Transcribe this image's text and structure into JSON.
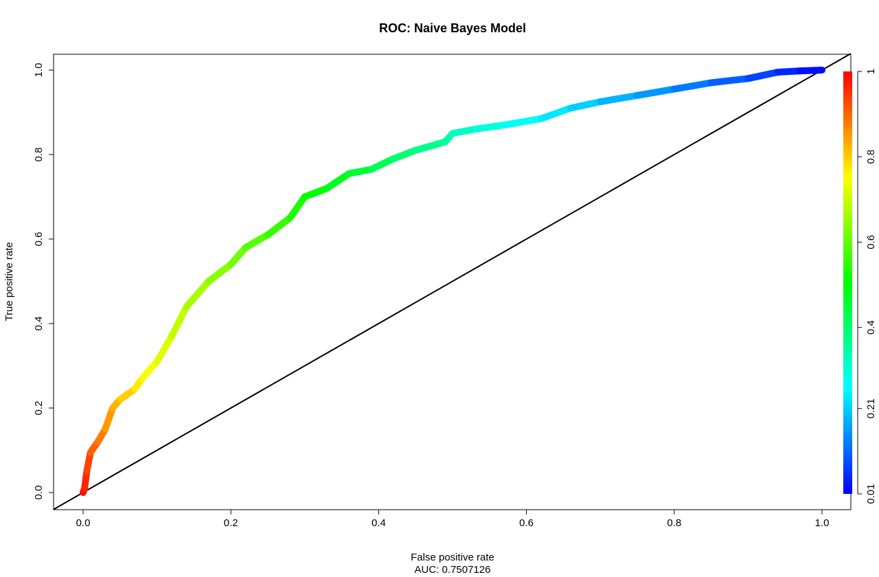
{
  "chart_data": {
    "type": "line",
    "title": "ROC: Naive Bayes Model",
    "xlabel": "False positive rate",
    "xlabel_sub": "AUC: 0.7507126",
    "ylabel": "True positive rate",
    "xlim": [
      0,
      1
    ],
    "ylim": [
      0,
      1
    ],
    "x_ticks": [
      "0.0",
      "0.2",
      "0.4",
      "0.6",
      "0.8",
      "1.0"
    ],
    "y_ticks": [
      "0.0",
      "0.2",
      "0.4",
      "0.6",
      "0.8",
      "1.0"
    ],
    "colorbar_ticks": [
      "0.01",
      "0.21",
      "0.4",
      "0.6",
      "0.8",
      "1"
    ],
    "colorbar_values": [
      0.01,
      0.21,
      0.4,
      0.6,
      0.8,
      1.0
    ],
    "colorbar_colors": [
      "#0000ff",
      "#00ffff",
      "#00ff00",
      "#ffff00",
      "#ff0000"
    ],
    "diagonal_color": "#000000",
    "roc_points": [
      {
        "fpr": 0.0,
        "tpr": 0.0
      },
      {
        "fpr": 0.002,
        "tpr": 0.01
      },
      {
        "fpr": 0.005,
        "tpr": 0.05
      },
      {
        "fpr": 0.01,
        "tpr": 0.095
      },
      {
        "fpr": 0.02,
        "tpr": 0.12
      },
      {
        "fpr": 0.03,
        "tpr": 0.15
      },
      {
        "fpr": 0.04,
        "tpr": 0.2
      },
      {
        "fpr": 0.05,
        "tpr": 0.22
      },
      {
        "fpr": 0.07,
        "tpr": 0.245
      },
      {
        "fpr": 0.08,
        "tpr": 0.27
      },
      {
        "fpr": 0.1,
        "tpr": 0.31
      },
      {
        "fpr": 0.12,
        "tpr": 0.37
      },
      {
        "fpr": 0.14,
        "tpr": 0.44
      },
      {
        "fpr": 0.17,
        "tpr": 0.5
      },
      {
        "fpr": 0.2,
        "tpr": 0.54
      },
      {
        "fpr": 0.22,
        "tpr": 0.58
      },
      {
        "fpr": 0.25,
        "tpr": 0.61
      },
      {
        "fpr": 0.28,
        "tpr": 0.65
      },
      {
        "fpr": 0.3,
        "tpr": 0.7
      },
      {
        "fpr": 0.33,
        "tpr": 0.72
      },
      {
        "fpr": 0.36,
        "tpr": 0.755
      },
      {
        "fpr": 0.39,
        "tpr": 0.765
      },
      {
        "fpr": 0.42,
        "tpr": 0.79
      },
      {
        "fpr": 0.45,
        "tpr": 0.81
      },
      {
        "fpr": 0.49,
        "tpr": 0.83
      },
      {
        "fpr": 0.5,
        "tpr": 0.85
      },
      {
        "fpr": 0.53,
        "tpr": 0.86
      },
      {
        "fpr": 0.57,
        "tpr": 0.87
      },
      {
        "fpr": 0.62,
        "tpr": 0.885
      },
      {
        "fpr": 0.66,
        "tpr": 0.91
      },
      {
        "fpr": 0.7,
        "tpr": 0.925
      },
      {
        "fpr": 0.75,
        "tpr": 0.94
      },
      {
        "fpr": 0.8,
        "tpr": 0.955
      },
      {
        "fpr": 0.85,
        "tpr": 0.97
      },
      {
        "fpr": 0.9,
        "tpr": 0.98
      },
      {
        "fpr": 0.94,
        "tpr": 0.995
      },
      {
        "fpr": 0.97,
        "tpr": 0.998
      },
      {
        "fpr": 1.0,
        "tpr": 1.0
      }
    ]
  }
}
